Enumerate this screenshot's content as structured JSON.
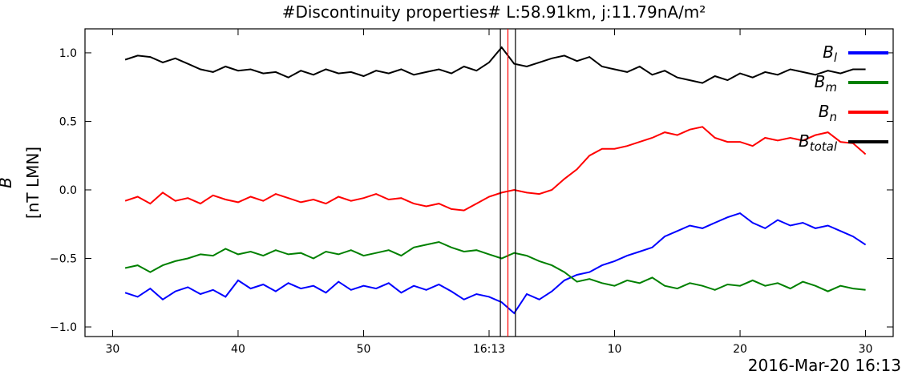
{
  "chart_data": {
    "type": "line",
    "title": "#Discontinuity properties# L:58.91km, j:11.79nA/m²",
    "ylabel": [
      "B",
      "[nT LMN]"
    ],
    "xlabel": "2016-Mar-20 16:13",
    "x": [
      31,
      32,
      33,
      34,
      35,
      36,
      37,
      38,
      39,
      40,
      41,
      42,
      43,
      44,
      45,
      46,
      47,
      48,
      49,
      50,
      51,
      52,
      53,
      54,
      55,
      56,
      57,
      58,
      59,
      60,
      61,
      62,
      63,
      64,
      65,
      66,
      67,
      68,
      69,
      70,
      71,
      72,
      73,
      74,
      75,
      76,
      77,
      78,
      79,
      80,
      81,
      82,
      83,
      84,
      85,
      86,
      87,
      88,
      89,
      90
    ],
    "series": [
      {
        "name": "Bl",
        "color": "#0000ff",
        "values": [
          -0.75,
          -0.78,
          -0.72,
          -0.8,
          -0.74,
          -0.71,
          -0.76,
          -0.73,
          -0.78,
          -0.66,
          -0.72,
          -0.69,
          -0.74,
          -0.68,
          -0.72,
          -0.7,
          -0.75,
          -0.67,
          -0.73,
          -0.7,
          -0.72,
          -0.68,
          -0.75,
          -0.7,
          -0.73,
          -0.69,
          -0.74,
          -0.8,
          -0.76,
          -0.78,
          -0.82,
          -0.9,
          -0.76,
          -0.8,
          -0.74,
          -0.66,
          -0.62,
          -0.6,
          -0.55,
          -0.52,
          -0.48,
          -0.45,
          -0.42,
          -0.34,
          -0.3,
          -0.26,
          -0.28,
          -0.24,
          -0.2,
          -0.17,
          -0.24,
          -0.28,
          -0.22,
          -0.26,
          -0.24,
          -0.28,
          -0.26,
          -0.3,
          -0.34,
          -0.4
        ]
      },
      {
        "name": "Bm",
        "color": "#008000",
        "values": [
          -0.57,
          -0.55,
          -0.6,
          -0.55,
          -0.52,
          -0.5,
          -0.47,
          -0.48,
          -0.43,
          -0.47,
          -0.45,
          -0.48,
          -0.44,
          -0.47,
          -0.46,
          -0.5,
          -0.45,
          -0.47,
          -0.44,
          -0.48,
          -0.46,
          -0.44,
          -0.48,
          -0.42,
          -0.4,
          -0.38,
          -0.42,
          -0.45,
          -0.44,
          -0.47,
          -0.5,
          -0.46,
          -0.48,
          -0.52,
          -0.55,
          -0.6,
          -0.67,
          -0.65,
          -0.68,
          -0.7,
          -0.66,
          -0.68,
          -0.64,
          -0.7,
          -0.72,
          -0.68,
          -0.7,
          -0.73,
          -0.69,
          -0.7,
          -0.66,
          -0.7,
          -0.68,
          -0.72,
          -0.67,
          -0.7,
          -0.74,
          -0.7,
          -0.72,
          -0.73
        ]
      },
      {
        "name": "Bn",
        "color": "#ff0000",
        "values": [
          -0.08,
          -0.05,
          -0.1,
          -0.02,
          -0.08,
          -0.06,
          -0.1,
          -0.04,
          -0.07,
          -0.09,
          -0.05,
          -0.08,
          -0.03,
          -0.06,
          -0.09,
          -0.07,
          -0.1,
          -0.05,
          -0.08,
          -0.06,
          -0.03,
          -0.07,
          -0.06,
          -0.1,
          -0.12,
          -0.1,
          -0.14,
          -0.15,
          -0.1,
          -0.05,
          -0.02,
          0.0,
          -0.02,
          -0.03,
          0.0,
          0.08,
          0.15,
          0.25,
          0.3,
          0.3,
          0.32,
          0.35,
          0.38,
          0.42,
          0.4,
          0.44,
          0.46,
          0.38,
          0.35,
          0.35,
          0.32,
          0.38,
          0.36,
          0.38,
          0.36,
          0.4,
          0.42,
          0.35,
          0.34,
          0.26
        ]
      },
      {
        "name": "Btotal",
        "color": "#000000",
        "values": [
          0.95,
          0.98,
          0.97,
          0.93,
          0.96,
          0.92,
          0.88,
          0.86,
          0.9,
          0.87,
          0.88,
          0.85,
          0.86,
          0.82,
          0.87,
          0.84,
          0.88,
          0.85,
          0.86,
          0.83,
          0.87,
          0.85,
          0.88,
          0.84,
          0.86,
          0.88,
          0.85,
          0.9,
          0.87,
          0.93,
          1.04,
          0.92,
          0.9,
          0.93,
          0.96,
          0.98,
          0.94,
          0.97,
          0.9,
          0.88,
          0.86,
          0.9,
          0.84,
          0.87,
          0.82,
          0.8,
          0.78,
          0.83,
          0.8,
          0.85,
          0.82,
          0.86,
          0.84,
          0.88,
          0.86,
          0.84,
          0.87,
          0.85,
          0.88,
          0.88
        ]
      }
    ],
    "vlines": [
      {
        "x": 60.9,
        "color": "#000000"
      },
      {
        "x": 61.5,
        "color": "#ff0000"
      },
      {
        "x": 62.1,
        "color": "#000000"
      }
    ],
    "xlim": [
      27.8,
      92.2
    ],
    "ylim": [
      -1.07,
      1.175
    ],
    "xticks": [
      30,
      40,
      50,
      {
        "value": 60,
        "label": "16:13"
      },
      {
        "value": 70,
        "label": "10"
      },
      {
        "value": 80,
        "label": "20"
      },
      {
        "value": 90,
        "label": "30"
      }
    ],
    "yticks": [
      {
        "value": -1,
        "label": "−1.0"
      },
      {
        "value": -0.5,
        "label": "−0.5"
      },
      {
        "value": 0,
        "label": "0.0"
      },
      {
        "value": 0.5,
        "label": "0.5"
      },
      {
        "value": 1,
        "label": "1.0"
      }
    ],
    "legend": "upper right"
  }
}
